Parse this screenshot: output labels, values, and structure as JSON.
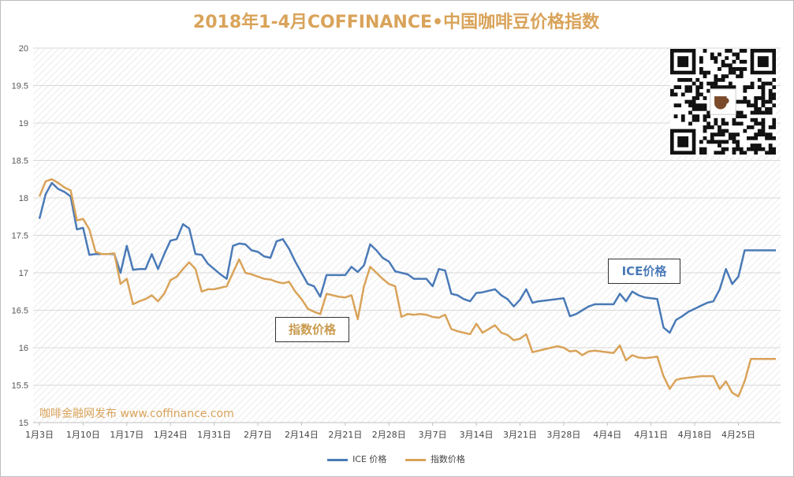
{
  "chart_data": {
    "type": "line",
    "title": "2018年1-4月COFFINANCE•中国咖啡豆价格指数",
    "ylim": [
      15,
      20
    ],
    "yticks": [
      "15",
      "15.5",
      "16",
      "16.5",
      "17",
      "17.5",
      "18",
      "18.5",
      "19",
      "19.5",
      "20"
    ],
    "x_tick_labels": [
      "1月3日",
      "1月10日",
      "1月17日",
      "1月24日",
      "1月31日",
      "2月7日",
      "2月14日",
      "2月21日",
      "2月28日",
      "3月7日",
      "3月14日",
      "3月21日",
      "3月28日",
      "4月4日",
      "4月11日",
      "4月18日",
      "4月25日"
    ],
    "x_range_days": [
      0,
      118
    ],
    "grid": true,
    "legend_position": "bottom",
    "series": [
      {
        "name": "ICE 价格",
        "color": "#4A7AB7",
        "x": [
          0,
          1,
          2,
          3,
          4,
          5,
          6,
          7,
          8,
          9,
          10,
          11,
          12,
          13,
          14,
          15,
          16,
          17,
          18,
          19,
          20,
          21,
          22,
          23,
          24,
          25,
          26,
          27,
          28,
          29,
          30,
          31,
          32,
          33,
          34,
          35,
          36,
          37,
          38,
          39,
          40,
          41,
          42,
          43,
          44,
          45,
          46,
          47,
          48,
          49,
          50,
          51,
          52,
          53,
          54,
          55,
          56,
          57,
          58,
          59,
          60,
          61,
          62,
          63,
          64,
          65,
          66,
          67,
          68,
          69,
          70,
          71,
          72,
          73,
          74,
          75,
          76,
          77,
          78,
          79,
          80,
          81,
          82,
          83,
          84,
          85,
          86,
          87,
          88,
          89,
          90,
          91,
          92,
          93,
          94,
          95,
          96,
          97,
          98,
          99,
          100,
          101,
          102,
          103,
          104,
          105,
          106,
          107,
          108,
          109,
          110,
          111,
          112,
          113,
          114,
          115,
          116,
          117,
          118
        ],
        "y": [
          17.72,
          18.05,
          18.2,
          18.12,
          18.08,
          18.02,
          17.58,
          17.6,
          17.24,
          17.25,
          17.25,
          17.25,
          17.25,
          17.0,
          17.36,
          17.04,
          17.05,
          17.05,
          17.25,
          17.05,
          17.25,
          17.43,
          17.45,
          17.65,
          17.59,
          17.25,
          17.24,
          17.12,
          17.05,
          16.98,
          16.92,
          17.36,
          17.39,
          17.38,
          17.3,
          17.28,
          17.22,
          17.2,
          17.42,
          17.45,
          17.32,
          17.15,
          17.0,
          16.85,
          16.82,
          16.68,
          16.97,
          16.97,
          16.97,
          16.97,
          17.08,
          17.01,
          17.1,
          17.38,
          17.3,
          17.2,
          17.15,
          17.02,
          17.0,
          16.98,
          16.92,
          16.92,
          16.92,
          16.82,
          17.05,
          17.03,
          16.72,
          16.7,
          16.65,
          16.62,
          16.73,
          16.74,
          16.76,
          16.78,
          16.7,
          16.65,
          16.55,
          16.64,
          16.78,
          16.6,
          16.62,
          16.63,
          16.64,
          16.65,
          16.66,
          16.42,
          16.45,
          16.5,
          16.55,
          16.58,
          16.58,
          16.58,
          16.58,
          16.72,
          16.62,
          16.75,
          16.7,
          16.67,
          16.66,
          16.65,
          16.27,
          16.2,
          16.37,
          16.42,
          16.48,
          16.52,
          16.56,
          16.6,
          16.62,
          16.78,
          17.05,
          16.85,
          16.95,
          17.3,
          17.3,
          17.3,
          17.3,
          17.3,
          17.3
        ]
      },
      {
        "name": "指数价格",
        "color": "#D9A35A",
        "x": [
          0,
          1,
          2,
          3,
          4,
          5,
          6,
          7,
          8,
          9,
          10,
          11,
          12,
          13,
          14,
          15,
          16,
          17,
          18,
          19,
          20,
          21,
          22,
          23,
          24,
          25,
          26,
          27,
          28,
          29,
          30,
          31,
          32,
          33,
          34,
          35,
          36,
          37,
          38,
          39,
          40,
          41,
          42,
          43,
          44,
          45,
          46,
          47,
          48,
          49,
          50,
          51,
          52,
          53,
          54,
          55,
          56,
          57,
          58,
          59,
          60,
          61,
          62,
          63,
          64,
          65,
          66,
          67,
          68,
          69,
          70,
          71,
          72,
          73,
          74,
          75,
          76,
          77,
          78,
          79,
          80,
          81,
          82,
          83,
          84,
          85,
          86,
          87,
          88,
          89,
          90,
          91,
          92,
          93,
          94,
          95,
          96,
          97,
          98,
          99,
          100,
          101,
          102,
          103,
          104,
          105,
          106,
          107,
          108,
          109,
          110,
          111,
          112,
          113,
          114,
          115,
          116,
          117,
          118
        ],
        "y": [
          18.02,
          18.22,
          18.25,
          18.2,
          18.14,
          18.1,
          17.7,
          17.72,
          17.58,
          17.28,
          17.25,
          17.25,
          17.26,
          16.85,
          16.92,
          16.58,
          16.62,
          16.65,
          16.7,
          16.62,
          16.72,
          16.9,
          16.95,
          17.05,
          17.14,
          17.05,
          16.75,
          16.78,
          16.78,
          16.8,
          16.82,
          17.0,
          17.18,
          17.0,
          16.98,
          16.95,
          16.92,
          16.91,
          16.88,
          16.86,
          16.88,
          16.75,
          16.65,
          16.52,
          16.48,
          16.45,
          16.72,
          16.7,
          16.68,
          16.67,
          16.7,
          16.38,
          16.82,
          17.08,
          17.0,
          16.92,
          16.85,
          16.82,
          16.41,
          16.45,
          16.44,
          16.45,
          16.44,
          16.41,
          16.4,
          16.44,
          16.25,
          16.22,
          16.2,
          16.18,
          16.32,
          16.2,
          16.25,
          16.3,
          16.2,
          16.17,
          16.1,
          16.12,
          16.18,
          15.94,
          15.96,
          15.98,
          16.0,
          16.02,
          16.0,
          15.95,
          15.96,
          15.9,
          15.95,
          15.96,
          15.95,
          15.94,
          15.93,
          16.03,
          15.83,
          15.9,
          15.87,
          15.86,
          15.87,
          15.88,
          15.62,
          15.45,
          15.57,
          15.59,
          15.6,
          15.61,
          15.62,
          15.62,
          15.62,
          15.45,
          15.55,
          15.4,
          15.35,
          15.55,
          15.85,
          15.85,
          15.85,
          15.85,
          15.85
        ]
      }
    ],
    "annotations": [
      {
        "text": "ICE价格",
        "series": "ICE 价格"
      },
      {
        "text": "指数价格",
        "series": "指数价格"
      }
    ]
  },
  "watermark": "咖啡金融网发布   www.coffinance.com",
  "qr_code_icon": "qr-code-icon"
}
